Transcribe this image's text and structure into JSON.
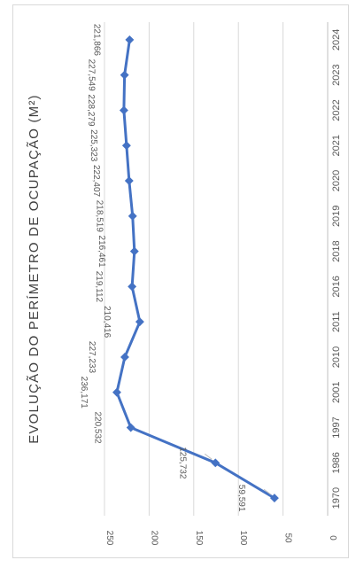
{
  "chart_data": {
    "type": "line",
    "title": "EVOLUÇÃO DO PERÍMETRO DE OCUPAÇÃO (M²)",
    "xlabel": "",
    "ylabel": "",
    "categories": [
      "1970",
      "1986",
      "1997",
      "2001",
      "2010",
      "2011",
      "2016",
      "2018",
      "2019",
      "2020",
      "2021",
      "2022",
      "2023",
      "2024"
    ],
    "series": [
      {
        "values": [
          59.591,
          125.732,
          220.532,
          236.171,
          227.233,
          210.416,
          219.112,
          216.461,
          218.519,
          222.407,
          225.323,
          228.279,
          227.549,
          221.866
        ],
        "labels": [
          "59,591",
          "125,732",
          "220,532",
          "236,171",
          "227,233",
          "210,416",
          "219,112",
          "216,461",
          "218,519",
          "222,407",
          "225,323",
          "228,279",
          "227,549",
          "221,866"
        ]
      }
    ],
    "ylim": [
      0,
      250
    ],
    "yticks": [
      0,
      50,
      100,
      150,
      200,
      250
    ],
    "ytick_labels": [
      "0",
      "50",
      "100",
      "150",
      "200",
      "250"
    ],
    "grid": true,
    "legend": "none",
    "colors": {
      "line": "#4472c4",
      "grid": "#d9d9d9",
      "text": "#595959",
      "axis": "#bfbfbf"
    }
  }
}
